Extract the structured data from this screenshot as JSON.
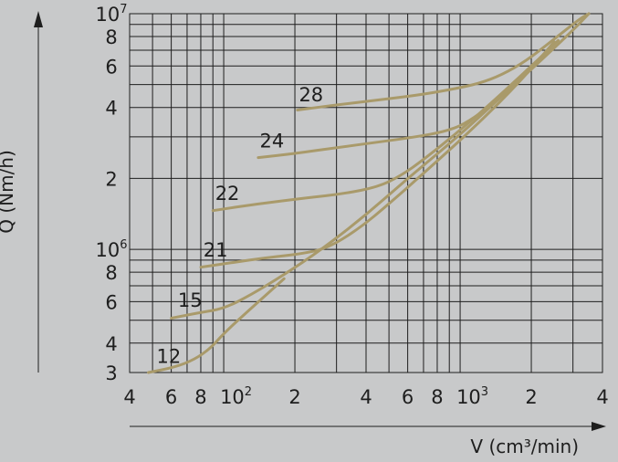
{
  "chart_data": {
    "type": "line",
    "title": "",
    "xlabel": "V (cm³/min)",
    "ylabel": "Q (Nm/h)",
    "xscale": "log",
    "yscale": "log",
    "xlim": [
      40,
      4000
    ],
    "ylim": [
      300000,
      10000000
    ],
    "grid": true,
    "curve_color": "#a99a6a",
    "x_ticks": [
      {
        "text": "4",
        "sup": ""
      },
      {
        "text": "6",
        "sup": ""
      },
      {
        "text": "8",
        "sup": ""
      },
      {
        "text": "10",
        "sup": "2"
      },
      {
        "text": "2",
        "sup": ""
      },
      {
        "text": "4",
        "sup": ""
      },
      {
        "text": "6",
        "sup": ""
      },
      {
        "text": "8",
        "sup": ""
      },
      {
        "text": "10",
        "sup": "3"
      },
      {
        "text": "2",
        "sup": ""
      },
      {
        "text": "4",
        "sup": ""
      }
    ],
    "y_ticks": [
      {
        "text": "3",
        "sup": ""
      },
      {
        "text": "4",
        "sup": ""
      },
      {
        "text": "6",
        "sup": ""
      },
      {
        "text": "8",
        "sup": ""
      },
      {
        "text": "10",
        "sup": "6"
      },
      {
        "text": "2",
        "sup": ""
      },
      {
        "text": "4",
        "sup": ""
      },
      {
        "text": "6",
        "sup": ""
      },
      {
        "text": "8",
        "sup": ""
      },
      {
        "text": "10",
        "sup": "7"
      }
    ],
    "series": [
      {
        "name": "12",
        "points": [
          [
            48,
            300000
          ],
          [
            62,
            316000
          ],
          [
            75,
            340000
          ],
          [
            88,
            380000
          ],
          [
            100,
            440000
          ],
          [
            130,
            560000
          ],
          [
            180,
            750000
          ]
        ]
      },
      {
        "name": "15",
        "points": [
          [
            60,
            510000
          ],
          [
            80,
            540000
          ],
          [
            100,
            560000
          ],
          [
            130,
            640000
          ],
          [
            180,
            780000
          ],
          [
            260,
            1000000
          ],
          [
            400,
            1400000
          ],
          [
            600,
            2000000
          ],
          [
            900,
            2800000
          ],
          [
            1300,
            3900000
          ],
          [
            1800,
            5300000
          ],
          [
            2400,
            7200000
          ]
        ]
      },
      {
        "name": "21",
        "points": [
          [
            80,
            840000
          ],
          [
            110,
            880000
          ],
          [
            150,
            920000
          ],
          [
            220,
            960000
          ],
          [
            280,
            1020000
          ],
          [
            380,
            1240000
          ],
          [
            500,
            1560000
          ],
          [
            700,
            2100000
          ],
          [
            1000,
            2900000
          ],
          [
            1400,
            4000000
          ],
          [
            1900,
            5500000
          ],
          [
            2500,
            7600000
          ]
        ]
      },
      {
        "name": "22",
        "points": [
          [
            90,
            1460000
          ],
          [
            140,
            1560000
          ],
          [
            220,
            1650000
          ],
          [
            320,
            1720000
          ],
          [
            450,
            1840000
          ],
          [
            560,
            2050000
          ],
          [
            700,
            2400000
          ],
          [
            1000,
            3200000
          ],
          [
            1400,
            4300000
          ],
          [
            2000,
            6000000
          ],
          [
            2600,
            7700000
          ]
        ]
      },
      {
        "name": "24",
        "points": [
          [
            140,
            2450000
          ],
          [
            200,
            2550000
          ],
          [
            300,
            2700000
          ],
          [
            450,
            2850000
          ],
          [
            650,
            3000000
          ],
          [
            850,
            3150000
          ],
          [
            1050,
            3400000
          ],
          [
            1400,
            4200000
          ],
          [
            2000,
            5800000
          ],
          [
            3000,
            8500000
          ],
          [
            3500,
            10000000
          ]
        ]
      },
      {
        "name": "28",
        "points": [
          [
            205,
            3900000
          ],
          [
            300,
            4100000
          ],
          [
            450,
            4300000
          ],
          [
            650,
            4500000
          ],
          [
            900,
            4750000
          ],
          [
            1200,
            5050000
          ],
          [
            1500,
            5500000
          ],
          [
            1900,
            6300000
          ],
          [
            2500,
            7800000
          ],
          [
            3200,
            9500000
          ],
          [
            3500,
            10000000
          ]
        ]
      }
    ],
    "curve_labels": [
      {
        "series": "12",
        "x": 52,
        "y": 330000
      },
      {
        "series": "15",
        "x": 64,
        "y": 570000
      },
      {
        "series": "21",
        "x": 82,
        "y": 930000
      },
      {
        "series": "22",
        "x": 92,
        "y": 1620000
      },
      {
        "series": "24",
        "x": 142,
        "y": 2700000
      },
      {
        "series": "28",
        "x": 208,
        "y": 4250000
      }
    ]
  }
}
